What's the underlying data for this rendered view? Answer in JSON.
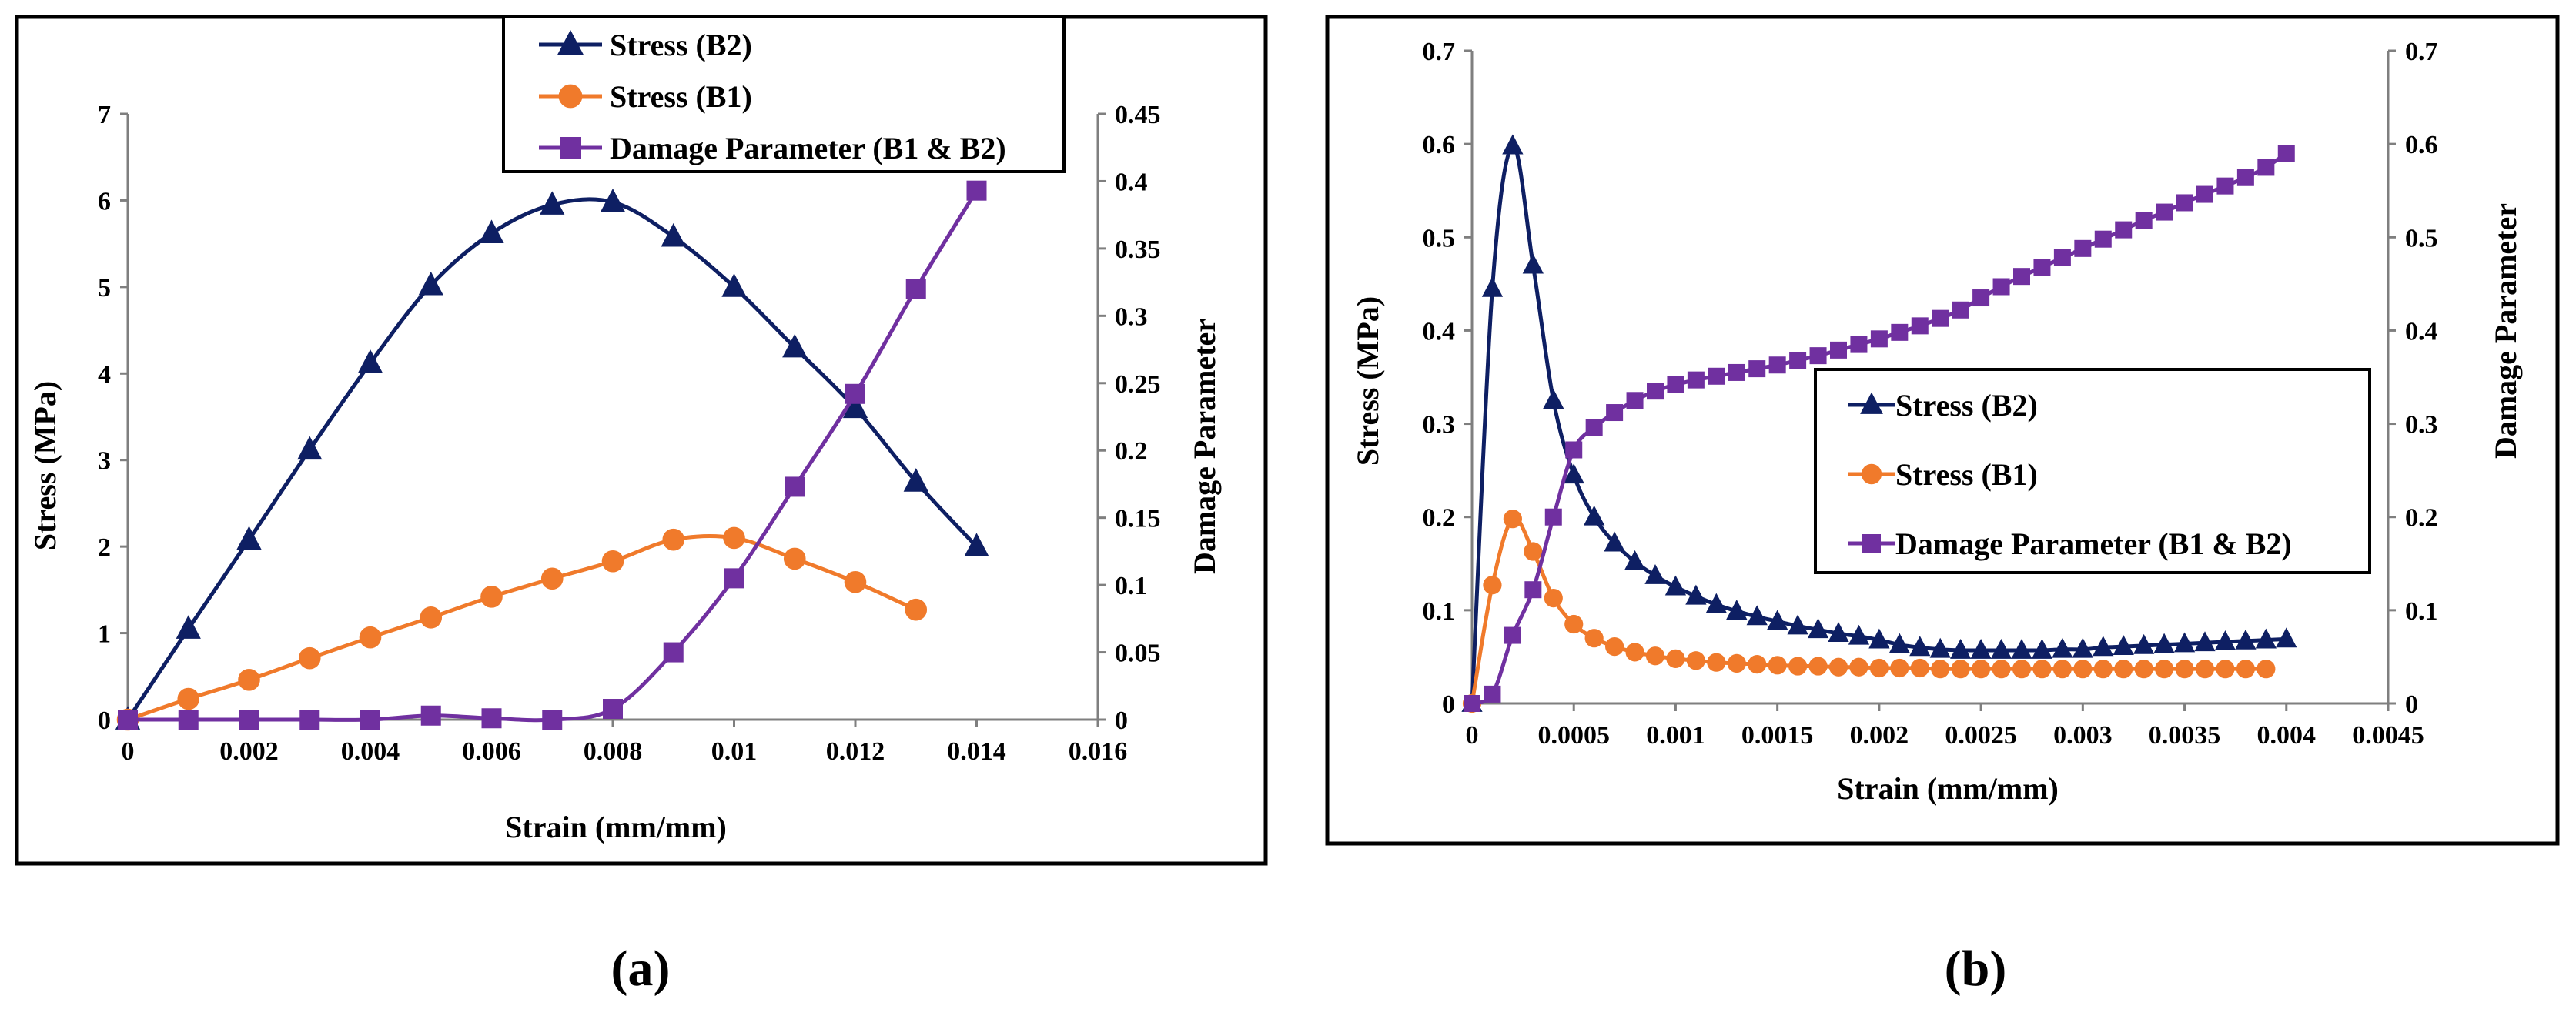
{
  "colors": {
    "b2": "#0e1f63",
    "b1": "#f07a2b",
    "damage": "#7030a0",
    "axis": "#7f7f7f",
    "frame": "#000000"
  },
  "chart_data": [
    {
      "type": "line",
      "panel_label": "(a)",
      "xlabel": "Strain (mm/mm)",
      "ylabel": "Stress (MPa)",
      "y2label": "Damage Parameter",
      "xlim": [
        0,
        0.016
      ],
      "ylim": [
        0,
        7
      ],
      "y2lim": [
        0,
        0.45
      ],
      "xticks": [
        0,
        0.002,
        0.004,
        0.006,
        0.008,
        0.01,
        0.012,
        0.014,
        0.016
      ],
      "xtick_labels": [
        "0",
        "0.002",
        "0.004",
        "0.006",
        "0.008",
        "0.01",
        "0.012",
        "0.014",
        "0.016"
      ],
      "yticks": [
        0,
        1,
        2,
        3,
        4,
        5,
        6,
        7
      ],
      "ytick_labels": [
        "0",
        "1",
        "2",
        "3",
        "4",
        "5",
        "6",
        "7"
      ],
      "y2ticks": [
        0,
        0.05,
        0.1,
        0.15,
        0.2,
        0.25,
        0.3,
        0.35,
        0.4,
        0.45
      ],
      "y2tick_labels": [
        "0",
        "0.05",
        "0.1",
        "0.15",
        "0.2",
        "0.25",
        "0.3",
        "0.35",
        "0.4",
        "0.45"
      ],
      "legend_position": "top-right",
      "series": [
        {
          "name": "Stress (B2)",
          "axis": "left",
          "marker": "triangle",
          "color_key": "b2",
          "x": [
            0,
            0.001,
            0.002,
            0.003,
            0.004,
            0.005,
            0.006,
            0.007,
            0.008,
            0.009,
            0.01,
            0.011,
            0.012,
            0.013,
            0.014
          ],
          "y": [
            0,
            1.05,
            2.08,
            3.12,
            4.12,
            5.02,
            5.62,
            5.95,
            5.98,
            5.58,
            5.0,
            4.3,
            3.6,
            2.75,
            2.0
          ]
        },
        {
          "name": "Stress (B1)",
          "axis": "left",
          "marker": "circle",
          "color_key": "b1",
          "x": [
            0,
            0.001,
            0.002,
            0.003,
            0.004,
            0.005,
            0.006,
            0.007,
            0.008,
            0.009,
            0.01,
            0.011,
            0.012,
            0.013
          ],
          "y": [
            0,
            0.24,
            0.46,
            0.71,
            0.95,
            1.18,
            1.42,
            1.63,
            1.83,
            2.08,
            2.1,
            1.86,
            1.59,
            1.27
          ]
        },
        {
          "name": "Damage Parameter (B1 & B2)",
          "axis": "right",
          "marker": "square",
          "color_key": "damage",
          "x": [
            0,
            0.001,
            0.002,
            0.003,
            0.004,
            0.005,
            0.006,
            0.007,
            0.008,
            0.009,
            0.01,
            0.011,
            0.012,
            0.013,
            0.014
          ],
          "y": [
            0,
            0,
            0,
            0,
            0,
            0.003,
            0.001,
            0,
            0.008,
            0.05,
            0.105,
            0.173,
            0.242,
            0.32,
            0.393
          ]
        }
      ]
    },
    {
      "type": "line",
      "panel_label": "(b)",
      "xlabel": "Strain (mm/mm)",
      "ylabel": "Stress (MPa)",
      "y2label": "Damage Parameter",
      "xlim": [
        0,
        0.0045
      ],
      "ylim": [
        0,
        0.7
      ],
      "y2lim": [
        0,
        0.7
      ],
      "xticks": [
        0,
        0.0005,
        0.001,
        0.0015,
        0.002,
        0.0025,
        0.003,
        0.0035,
        0.004,
        0.0045
      ],
      "xtick_labels": [
        "0",
        "0.0005",
        "0.001",
        "0.0015",
        "0.002",
        "0.0025",
        "0.003",
        "0.0035",
        "0.004",
        "0.0045"
      ],
      "yticks": [
        0,
        0.1,
        0.2,
        0.3,
        0.4,
        0.5,
        0.6,
        0.7
      ],
      "ytick_labels": [
        "0",
        "0.1",
        "0.2",
        "0.3",
        "0.4",
        "0.5",
        "0.6",
        "0.7"
      ],
      "y2ticks": [
        0,
        0.1,
        0.2,
        0.3,
        0.4,
        0.5,
        0.6,
        0.7
      ],
      "y2tick_labels": [
        "0",
        "0.1",
        "0.2",
        "0.3",
        "0.4",
        "0.5",
        "0.6",
        "0.7"
      ],
      "legend_position": "center-right",
      "series": [
        {
          "name": "Stress (B2)",
          "axis": "left",
          "marker": "triangle",
          "color_key": "b2",
          "x": [
            0,
            0.0001,
            0.0002,
            0.0003,
            0.0004,
            0.0005,
            0.0006,
            0.0007,
            0.0008,
            0.0009,
            0.001,
            0.0011,
            0.0012,
            0.0013,
            0.0014,
            0.0015,
            0.0016,
            0.0017,
            0.0018,
            0.0019,
            0.002,
            0.0021,
            0.0022,
            0.0023,
            0.0024,
            0.0025,
            0.0026,
            0.0027,
            0.0028,
            0.0029,
            0.003,
            0.0031,
            0.0032,
            0.0033,
            0.0034,
            0.0035,
            0.0036,
            0.0037,
            0.0038,
            0.0039,
            0.004
          ],
          "y": [
            0,
            0.445,
            0.598,
            0.47,
            0.325,
            0.245,
            0.2,
            0.172,
            0.152,
            0.137,
            0.125,
            0.115,
            0.106,
            0.099,
            0.093,
            0.088,
            0.083,
            0.079,
            0.075,
            0.072,
            0.068,
            0.063,
            0.06,
            0.058,
            0.057,
            0.057,
            0.057,
            0.057,
            0.057,
            0.058,
            0.058,
            0.06,
            0.061,
            0.062,
            0.063,
            0.064,
            0.065,
            0.066,
            0.067,
            0.068,
            0.069
          ]
        },
        {
          "name": "Stress (B1)",
          "axis": "left",
          "marker": "circle",
          "color_key": "b1",
          "x": [
            0,
            0.0001,
            0.0002,
            0.0003,
            0.0004,
            0.0005,
            0.0006,
            0.0007,
            0.0008,
            0.0009,
            0.001,
            0.0011,
            0.0012,
            0.0013,
            0.0014,
            0.0015,
            0.0016,
            0.0017,
            0.0018,
            0.0019,
            0.002,
            0.0021,
            0.0022,
            0.0023,
            0.0024,
            0.0025,
            0.0026,
            0.0027,
            0.0028,
            0.0029,
            0.003,
            0.0031,
            0.0032,
            0.0033,
            0.0034,
            0.0035,
            0.0036,
            0.0037,
            0.0038,
            0.0039
          ],
          "y": [
            0,
            0.127,
            0.198,
            0.163,
            0.113,
            0.085,
            0.07,
            0.061,
            0.055,
            0.051,
            0.048,
            0.046,
            0.044,
            0.043,
            0.042,
            0.041,
            0.04,
            0.04,
            0.039,
            0.039,
            0.038,
            0.038,
            0.038,
            0.037,
            0.037,
            0.037,
            0.037,
            0.037,
            0.037,
            0.037,
            0.037,
            0.037,
            0.037,
            0.037,
            0.037,
            0.037,
            0.037,
            0.037,
            0.037,
            0.037
          ]
        },
        {
          "name": "Damage Parameter (B1 & B2)",
          "axis": "right",
          "marker": "square",
          "color_key": "damage",
          "x": [
            0,
            0.0001,
            0.0002,
            0.0003,
            0.0004,
            0.0005,
            0.0006,
            0.0007,
            0.0008,
            0.0009,
            0.001,
            0.0011,
            0.0012,
            0.0013,
            0.0014,
            0.0015,
            0.0016,
            0.0017,
            0.0018,
            0.0019,
            0.002,
            0.0021,
            0.0022,
            0.0023,
            0.0024,
            0.0025,
            0.0026,
            0.0027,
            0.0028,
            0.0029,
            0.003,
            0.0031,
            0.0032,
            0.0033,
            0.0034,
            0.0035,
            0.0036,
            0.0037,
            0.0038,
            0.0039,
            0.004
          ],
          "y": [
            0,
            0.01,
            0.073,
            0.122,
            0.2,
            0.272,
            0.296,
            0.312,
            0.325,
            0.335,
            0.342,
            0.347,
            0.351,
            0.355,
            0.359,
            0.363,
            0.368,
            0.373,
            0.379,
            0.385,
            0.391,
            0.398,
            0.405,
            0.413,
            0.422,
            0.435,
            0.447,
            0.458,
            0.468,
            0.478,
            0.488,
            0.498,
            0.508,
            0.518,
            0.527,
            0.537,
            0.546,
            0.555,
            0.564,
            0.575,
            0.59
          ]
        }
      ]
    }
  ]
}
